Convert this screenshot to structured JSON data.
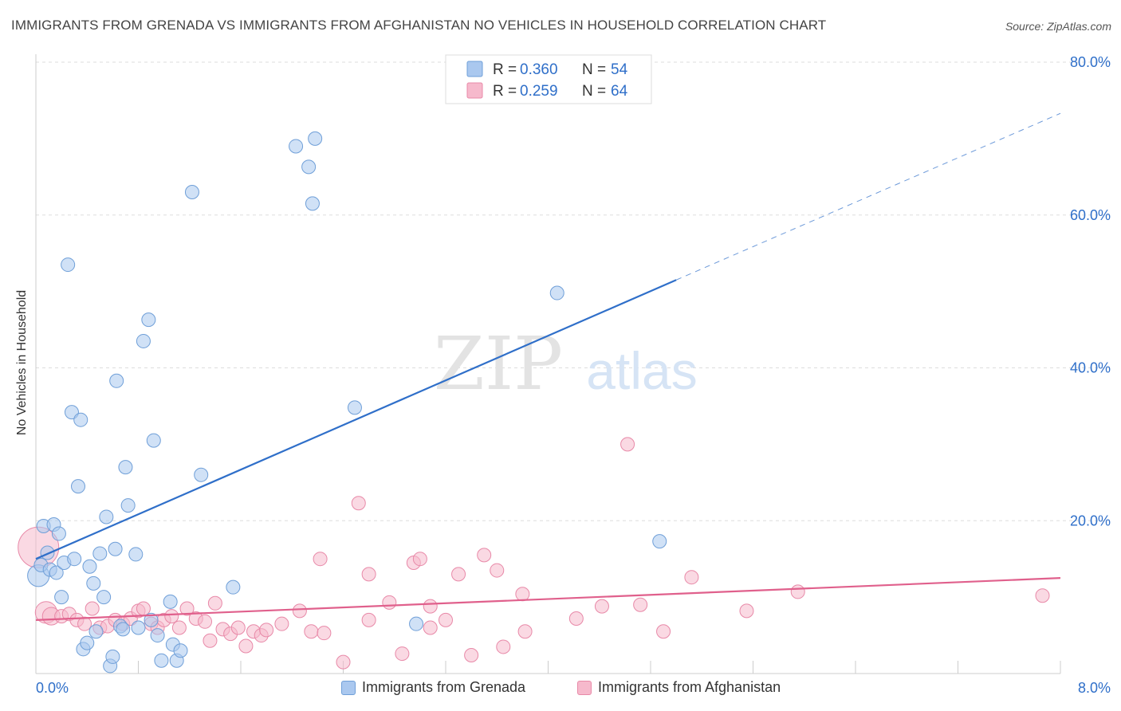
{
  "header": {
    "title": "IMMIGRANTS FROM GRENADA VS IMMIGRANTS FROM AFGHANISTAN NO VEHICLES IN HOUSEHOLD CORRELATION CHART",
    "source": "Source: ZipAtlas.com"
  },
  "watermark": {
    "zip": "ZIP",
    "atlas": "atlas"
  },
  "colors": {
    "grenada_fill": "#aac8ef",
    "grenada_stroke": "#6f9fd8",
    "grenada_line": "#2f6fc9",
    "afghanistan_fill": "#f6b9cc",
    "afghanistan_stroke": "#e889a8",
    "afghanistan_line": "#e0608c",
    "value_text": "#2f6fc9",
    "grid": "#dddddd"
  },
  "legend": {
    "entries": [
      {
        "r_label": "R =",
        "r_value": "0.360",
        "n_label": "N =",
        "n_value": "54"
      },
      {
        "r_label": "R =",
        "r_value": "0.259",
        "n_label": "N =",
        "n_value": "64"
      }
    ]
  },
  "chart_data": {
    "type": "scatter",
    "title": "IMMIGRANTS FROM GRENADA VS IMMIGRANTS FROM AFGHANISTAN NO VEHICLES IN HOUSEHOLD CORRELATION CHART",
    "xlabel": "",
    "ylabel": "No Vehicles in Household",
    "xlim": [
      0,
      8
    ],
    "ylim": [
      0,
      80
    ],
    "x_ticks": [
      "0.0%",
      "8.0%"
    ],
    "y_ticks": [
      {
        "value": 20,
        "label": "20.0%"
      },
      {
        "value": 40,
        "label": "40.0%"
      },
      {
        "value": 60,
        "label": "60.0%"
      },
      {
        "value": 80,
        "label": "80.0%"
      }
    ],
    "grid": true,
    "legend_position": "top-center",
    "series": [
      {
        "name": "Immigrants from Grenada",
        "trend": {
          "x0": 0.0,
          "y0": 15.0,
          "x1": 5.0,
          "y1": 51.5,
          "dash_to_x": 8.0,
          "dash_to_y": 73.3
        },
        "points": [
          [
            0.02,
            12.8,
            1.6
          ],
          [
            0.04,
            14.2,
            1.0
          ],
          [
            0.06,
            19.3,
            1.0
          ],
          [
            0.09,
            15.8,
            1.0
          ],
          [
            0.11,
            13.6,
            1.0
          ],
          [
            0.14,
            19.5,
            1.0
          ],
          [
            0.16,
            13.2,
            1.0
          ],
          [
            0.18,
            18.3,
            1.0
          ],
          [
            0.2,
            10.0,
            1.0
          ],
          [
            0.22,
            14.5,
            1.0
          ],
          [
            0.25,
            53.5,
            1.0
          ],
          [
            0.28,
            34.2,
            1.0
          ],
          [
            0.3,
            15.0,
            1.0
          ],
          [
            0.33,
            24.5,
            1.0
          ],
          [
            0.35,
            33.2,
            1.0
          ],
          [
            0.37,
            3.2,
            1.0
          ],
          [
            0.4,
            4.0,
            1.0
          ],
          [
            0.42,
            14.0,
            1.0
          ],
          [
            0.45,
            11.8,
            1.0
          ],
          [
            0.47,
            5.5,
            1.0
          ],
          [
            0.5,
            15.7,
            1.0
          ],
          [
            0.53,
            10.0,
            1.0
          ],
          [
            0.55,
            20.5,
            1.0
          ],
          [
            0.58,
            1.0,
            1.0
          ],
          [
            0.6,
            2.2,
            1.0
          ],
          [
            0.62,
            16.3,
            1.0
          ],
          [
            0.63,
            38.3,
            1.0
          ],
          [
            0.66,
            6.2,
            1.0
          ],
          [
            0.68,
            5.8,
            1.0
          ],
          [
            0.7,
            27.0,
            1.0
          ],
          [
            0.72,
            22.0,
            1.0
          ],
          [
            0.78,
            15.6,
            1.0
          ],
          [
            0.8,
            6.0,
            1.0
          ],
          [
            0.84,
            43.5,
            1.0
          ],
          [
            0.88,
            46.3,
            1.0
          ],
          [
            0.9,
            7.0,
            1.0
          ],
          [
            0.92,
            30.5,
            1.0
          ],
          [
            0.95,
            5.0,
            1.0
          ],
          [
            0.98,
            1.7,
            1.0
          ],
          [
            1.05,
            9.4,
            1.0
          ],
          [
            1.07,
            3.8,
            1.0
          ],
          [
            1.1,
            1.7,
            1.0
          ],
          [
            1.13,
            3.0,
            1.0
          ],
          [
            1.22,
            63.0,
            1.0
          ],
          [
            1.29,
            26.0,
            1.0
          ],
          [
            1.54,
            11.3,
            1.0
          ],
          [
            2.03,
            69.0,
            1.0
          ],
          [
            2.13,
            66.3,
            1.0
          ],
          [
            2.16,
            61.5,
            1.0
          ],
          [
            2.18,
            70.0,
            1.0
          ],
          [
            2.49,
            34.8,
            1.0
          ],
          [
            2.97,
            6.5,
            1.0
          ],
          [
            4.07,
            49.8,
            1.0
          ],
          [
            4.87,
            17.3,
            1.0
          ]
        ]
      },
      {
        "name": "Immigrants from Afghanistan",
        "trend": {
          "x0": 0.0,
          "y0": 7.0,
          "x1": 8.0,
          "y1": 12.5
        },
        "points": [
          [
            0.02,
            16.5,
            3.0
          ],
          [
            0.08,
            8.0,
            1.6
          ],
          [
            0.12,
            7.5,
            1.3
          ],
          [
            0.2,
            7.5,
            1.0
          ],
          [
            0.26,
            7.8,
            1.0
          ],
          [
            0.32,
            7.0,
            1.0
          ],
          [
            0.38,
            6.5,
            1.0
          ],
          [
            0.44,
            8.5,
            1.0
          ],
          [
            0.5,
            6.0,
            1.0
          ],
          [
            0.56,
            6.2,
            1.0
          ],
          [
            0.62,
            7.0,
            1.0
          ],
          [
            0.68,
            6.5,
            1.0
          ],
          [
            0.74,
            7.2,
            1.0
          ],
          [
            0.8,
            8.2,
            1.0
          ],
          [
            0.84,
            8.5,
            1.0
          ],
          [
            0.9,
            6.5,
            1.0
          ],
          [
            0.95,
            6.0,
            1.0
          ],
          [
            1.0,
            7.0,
            1.0
          ],
          [
            1.06,
            7.5,
            1.0
          ],
          [
            1.12,
            6.0,
            1.0
          ],
          [
            1.18,
            8.5,
            1.0
          ],
          [
            1.25,
            7.2,
            1.0
          ],
          [
            1.32,
            6.8,
            1.0
          ],
          [
            1.36,
            4.3,
            1.0
          ],
          [
            1.4,
            9.2,
            1.0
          ],
          [
            1.46,
            5.8,
            1.0
          ],
          [
            1.52,
            5.2,
            1.0
          ],
          [
            1.58,
            6.0,
            1.0
          ],
          [
            1.64,
            3.6,
            1.0
          ],
          [
            1.7,
            5.5,
            1.0
          ],
          [
            1.76,
            5.0,
            1.0
          ],
          [
            1.8,
            5.7,
            1.0
          ],
          [
            1.92,
            6.5,
            1.0
          ],
          [
            2.06,
            8.2,
            1.0
          ],
          [
            2.15,
            5.5,
            1.0
          ],
          [
            2.22,
            15.0,
            1.0
          ],
          [
            2.25,
            5.3,
            1.0
          ],
          [
            2.4,
            1.5,
            1.0
          ],
          [
            2.52,
            22.3,
            1.0
          ],
          [
            2.6,
            13.0,
            1.0
          ],
          [
            2.6,
            7.0,
            1.0
          ],
          [
            2.76,
            9.3,
            1.0
          ],
          [
            2.86,
            2.6,
            1.0
          ],
          [
            2.95,
            14.5,
            1.0
          ],
          [
            3.0,
            15.0,
            1.0
          ],
          [
            3.08,
            8.8,
            1.0
          ],
          [
            3.08,
            6.0,
            1.0
          ],
          [
            3.2,
            7.0,
            1.0
          ],
          [
            3.3,
            13.0,
            1.0
          ],
          [
            3.4,
            2.4,
            1.0
          ],
          [
            3.5,
            15.5,
            1.0
          ],
          [
            3.6,
            13.5,
            1.0
          ],
          [
            3.65,
            3.5,
            1.0
          ],
          [
            3.8,
            10.4,
            1.0
          ],
          [
            3.82,
            5.5,
            1.0
          ],
          [
            4.22,
            7.2,
            1.0
          ],
          [
            4.42,
            8.8,
            1.0
          ],
          [
            4.62,
            30.0,
            1.0
          ],
          [
            4.72,
            9.0,
            1.0
          ],
          [
            4.9,
            5.5,
            1.0
          ],
          [
            5.12,
            12.6,
            1.0
          ],
          [
            5.55,
            8.2,
            1.0
          ],
          [
            5.95,
            10.7,
            1.0
          ],
          [
            7.86,
            10.2,
            1.0
          ]
        ]
      }
    ]
  }
}
